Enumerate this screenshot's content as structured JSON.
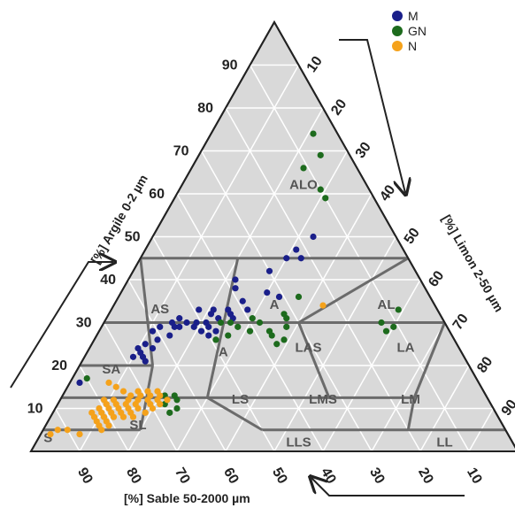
{
  "chart_data": {
    "type": "scatter",
    "subtype": "ternary",
    "axes": {
      "clay": {
        "label": "[%] Argile 0-2 µm",
        "ticks": [
          "10",
          "20",
          "30",
          "40",
          "50",
          "60",
          "70",
          "80",
          "90"
        ]
      },
      "silt": {
        "label": "[%] Limon 2-50 µm",
        "ticks": [
          "10",
          "20",
          "30",
          "40",
          "50",
          "60",
          "70",
          "80",
          "90"
        ]
      },
      "sand": {
        "label": "[%] Sable 50-2000 µm",
        "ticks": [
          "10",
          "20",
          "30",
          "40",
          "50",
          "60",
          "70",
          "80",
          "90"
        ]
      }
    },
    "grid": true,
    "legend_position": "top-right",
    "zones": [
      {
        "label": "ALO",
        "clay": 62,
        "silt": 25
      },
      {
        "label": "A",
        "clay": 34,
        "silt": 33
      },
      {
        "label": "AS",
        "clay": 33,
        "silt": 10
      },
      {
        "label": "AL",
        "clay": 34,
        "silt": 56
      },
      {
        "label": "LAS",
        "clay": 24,
        "silt": 45
      },
      {
        "label": "LA",
        "clay": 24,
        "silt": 65
      },
      {
        "label": "SA",
        "clay": 19,
        "silt": 7
      },
      {
        "label": "A",
        "clay": 23,
        "silt": 28
      },
      {
        "label": "LS",
        "clay": 12,
        "silt": 37
      },
      {
        "label": "LMS",
        "clay": 12,
        "silt": 54
      },
      {
        "label": "LM",
        "clay": 12,
        "silt": 72
      },
      {
        "label": "S",
        "clay": 3,
        "silt": 2
      },
      {
        "label": "SL",
        "clay": 6,
        "silt": 19
      },
      {
        "label": "LLS",
        "clay": 2,
        "silt": 54
      },
      {
        "label": "LL",
        "clay": 2,
        "silt": 84
      }
    ],
    "series": [
      {
        "name": "M",
        "color": "#1a1f8a",
        "points": [
          {
            "clay": 50,
            "silt": 33
          },
          {
            "clay": 47,
            "silt": 31
          },
          {
            "clay": 45,
            "silt": 33
          },
          {
            "clay": 45,
            "silt": 30
          },
          {
            "clay": 42,
            "silt": 28
          },
          {
            "clay": 40,
            "silt": 22
          },
          {
            "clay": 38,
            "silt": 23
          },
          {
            "clay": 37,
            "silt": 30
          },
          {
            "clay": 36,
            "silt": 33
          },
          {
            "clay": 35,
            "silt": 26
          },
          {
            "clay": 33,
            "silt": 28
          },
          {
            "clay": 33,
            "silt": 24
          },
          {
            "clay": 33,
            "silt": 21
          },
          {
            "clay": 33,
            "silt": 18
          },
          {
            "clay": 32,
            "silt": 21
          },
          {
            "clay": 32,
            "silt": 25
          },
          {
            "clay": 31,
            "silt": 15
          },
          {
            "clay": 31,
            "silt": 23
          },
          {
            "clay": 31,
            "silt": 26
          },
          {
            "clay": 30,
            "silt": 19
          },
          {
            "clay": 30,
            "silt": 17
          },
          {
            "clay": 30,
            "silt": 21
          },
          {
            "clay": 30,
            "silt": 14
          },
          {
            "clay": 29,
            "silt": 15
          },
          {
            "clay": 29,
            "silt": 12
          },
          {
            "clay": 29,
            "silt": 16
          },
          {
            "clay": 29,
            "silt": 19
          },
          {
            "clay": 29,
            "silt": 22
          },
          {
            "clay": 28,
            "silt": 24
          },
          {
            "clay": 28,
            "silt": 11
          },
          {
            "clay": 28,
            "silt": 21
          },
          {
            "clay": 27,
            "silt": 23
          },
          {
            "clay": 27,
            "silt": 15
          },
          {
            "clay": 26,
            "silt": 13
          },
          {
            "clay": 25,
            "silt": 11
          },
          {
            "clay": 24,
            "silt": 10
          },
          {
            "clay": 24,
            "silt": 13
          },
          {
            "clay": 23,
            "silt": 11
          },
          {
            "clay": 22,
            "silt": 10
          },
          {
            "clay": 22,
            "silt": 12
          },
          {
            "clay": 21,
            "silt": 13
          },
          {
            "clay": 16,
            "silt": 2
          }
        ]
      },
      {
        "name": "GN",
        "color": "#1d6b1d",
        "points": [
          {
            "clay": 74,
            "silt": 21
          },
          {
            "clay": 69,
            "silt": 25
          },
          {
            "clay": 66,
            "silt": 23
          },
          {
            "clay": 61,
            "silt": 29
          },
          {
            "clay": 59,
            "silt": 31
          },
          {
            "clay": 36,
            "silt": 37
          },
          {
            "clay": 33,
            "silt": 59
          },
          {
            "clay": 32,
            "silt": 36
          },
          {
            "clay": 31,
            "silt": 37
          },
          {
            "clay": 30,
            "silt": 32
          },
          {
            "clay": 30,
            "silt": 57
          },
          {
            "clay": 29,
            "silt": 38
          },
          {
            "clay": 29,
            "silt": 60
          },
          {
            "clay": 28,
            "silt": 59
          },
          {
            "clay": 28,
            "silt": 31
          },
          {
            "clay": 28,
            "silt": 35
          },
          {
            "clay": 27,
            "silt": 36
          },
          {
            "clay": 26,
            "silt": 39
          },
          {
            "clay": 25,
            "silt": 38
          },
          {
            "clay": 30,
            "silt": 24
          },
          {
            "clay": 31,
            "silt": 30
          },
          {
            "clay": 27,
            "silt": 27
          },
          {
            "clay": 26,
            "silt": 25
          },
          {
            "clay": 30,
            "silt": 26
          },
          {
            "clay": 29,
            "silt": 28
          },
          {
            "clay": 17,
            "silt": 3
          },
          {
            "clay": 13,
            "silt": 23
          },
          {
            "clay": 12,
            "silt": 24
          },
          {
            "clay": 11,
            "silt": 22
          },
          {
            "clay": 10,
            "silt": 25
          },
          {
            "clay": 13,
            "silt": 21
          },
          {
            "clay": 9,
            "silt": 24
          }
        ]
      },
      {
        "name": "N",
        "color": "#f5a21b",
        "points": [
          {
            "clay": 34,
            "silt": 43
          },
          {
            "clay": 16,
            "silt": 8
          },
          {
            "clay": 15,
            "silt": 10
          },
          {
            "clay": 14,
            "silt": 12
          },
          {
            "clay": 14,
            "silt": 15
          },
          {
            "clay": 14,
            "silt": 17
          },
          {
            "clay": 14,
            "silt": 19
          },
          {
            "clay": 13,
            "silt": 14
          },
          {
            "clay": 13,
            "silt": 16
          },
          {
            "clay": 13,
            "silt": 18
          },
          {
            "clay": 13,
            "silt": 20
          },
          {
            "clay": 12,
            "silt": 9
          },
          {
            "clay": 12,
            "silt": 11
          },
          {
            "clay": 12,
            "silt": 14
          },
          {
            "clay": 12,
            "silt": 16
          },
          {
            "clay": 12,
            "silt": 18
          },
          {
            "clay": 12,
            "silt": 20
          },
          {
            "clay": 12,
            "silt": 22
          },
          {
            "clay": 11,
            "silt": 10
          },
          {
            "clay": 11,
            "silt": 12
          },
          {
            "clay": 11,
            "silt": 14
          },
          {
            "clay": 11,
            "silt": 16
          },
          {
            "clay": 11,
            "silt": 19
          },
          {
            "clay": 11,
            "silt": 21
          },
          {
            "clay": 10,
            "silt": 9
          },
          {
            "clay": 10,
            "silt": 11
          },
          {
            "clay": 10,
            "silt": 13
          },
          {
            "clay": 10,
            "silt": 15
          },
          {
            "clay": 10,
            "silt": 17
          },
          {
            "clay": 10,
            "silt": 20
          },
          {
            "clay": 9,
            "silt": 8
          },
          {
            "clay": 9,
            "silt": 10
          },
          {
            "clay": 9,
            "silt": 12
          },
          {
            "clay": 9,
            "silt": 14
          },
          {
            "clay": 9,
            "silt": 16
          },
          {
            "clay": 9,
            "silt": 19
          },
          {
            "clay": 8,
            "silt": 9
          },
          {
            "clay": 8,
            "silt": 11
          },
          {
            "clay": 8,
            "silt": 13
          },
          {
            "clay": 8,
            "silt": 15
          },
          {
            "clay": 8,
            "silt": 17
          },
          {
            "clay": 7,
            "silt": 10
          },
          {
            "clay": 7,
            "silt": 12
          },
          {
            "clay": 6,
            "silt": 11
          },
          {
            "clay": 6,
            "silt": 13
          },
          {
            "clay": 5,
            "silt": 12
          },
          {
            "clay": 5,
            "silt": 5
          },
          {
            "clay": 5,
            "silt": 3
          },
          {
            "clay": 4,
            "silt": 2
          },
          {
            "clay": 4,
            "silt": 8
          }
        ]
      }
    ]
  }
}
